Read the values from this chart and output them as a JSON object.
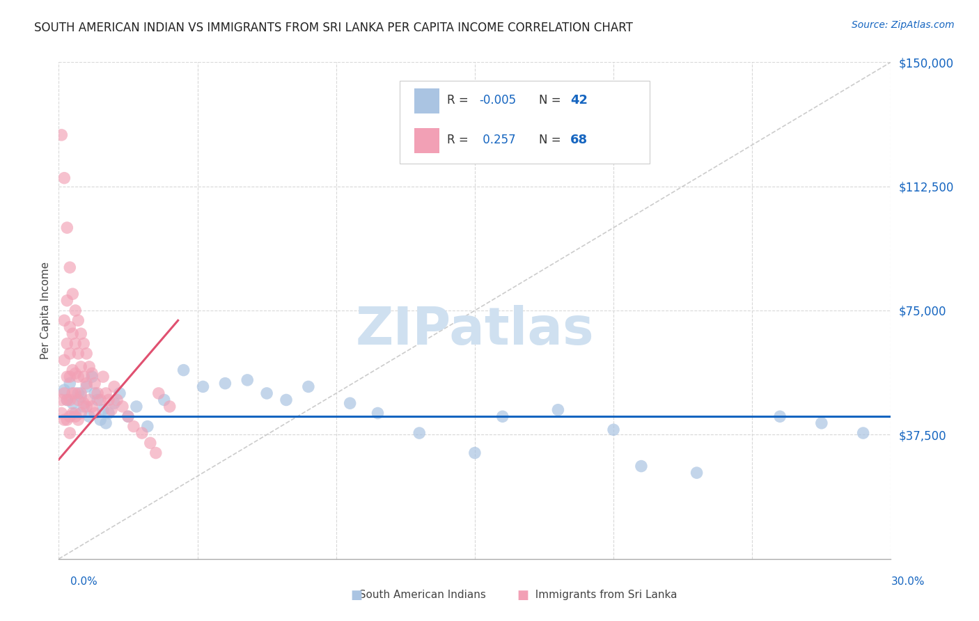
{
  "title": "SOUTH AMERICAN INDIAN VS IMMIGRANTS FROM SRI LANKA PER CAPITA INCOME CORRELATION CHART",
  "source": "Source: ZipAtlas.com",
  "ylabel": "Per Capita Income",
  "yticks": [
    0,
    37500,
    75000,
    112500,
    150000
  ],
  "ytick_labels": [
    "",
    "$37,500",
    "$75,000",
    "$112,500",
    "$150,000"
  ],
  "xmin": 0.0,
  "xmax": 0.3,
  "ymin": 0,
  "ymax": 150000,
  "blue_R": "-0.005",
  "blue_N": "42",
  "pink_R": "0.257",
  "pink_N": "68",
  "blue_color": "#aac4e2",
  "pink_color": "#f2a0b5",
  "blue_trend_color": "#1565c0",
  "pink_trend_color": "#e05070",
  "diag_color": "#cccccc",
  "grid_color": "#d8d8d8",
  "watermark_color": "#cfe0f0",
  "blue_trend_y": 43000,
  "pink_trend_x0": 0.0,
  "pink_trend_y0": 30000,
  "pink_trend_x1": 0.043,
  "pink_trend_y1": 72000,
  "legend_blue_label": "R =  -0.005   N = 42",
  "legend_pink_label": "R =   0.257   N = 68",
  "bottom_legend_blue": "South American Indians",
  "bottom_legend_pink": "Immigrants from Sri Lanka"
}
